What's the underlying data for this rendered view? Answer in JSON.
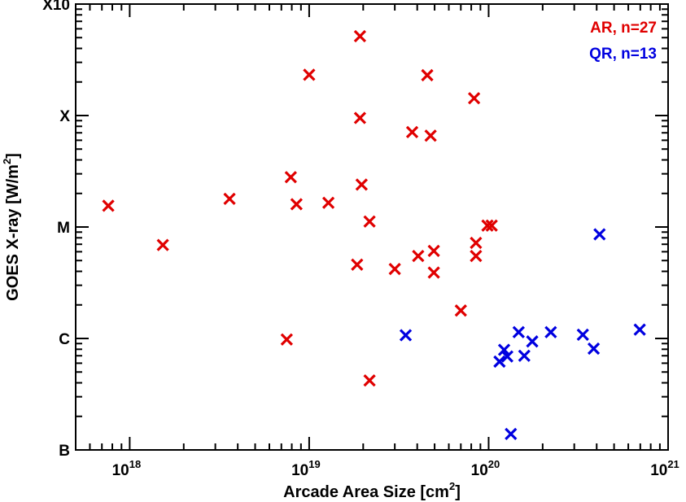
{
  "chart_data": {
    "type": "scatter",
    "xlabel": "Arcade Area Size [cm",
    "xlabel_sup": "2",
    "xlabel_end": "]",
    "ylabel": "GOES X-ray [W/m",
    "ylabel_sup": "2",
    "ylabel_end": "]",
    "x_scale": "log",
    "y_scale": "log",
    "xlim": [
      5e+17,
      1e+21
    ],
    "ylim": [
      1e-07,
      0.001
    ],
    "x_ticks": [
      {
        "value": 1e+18,
        "base": "10",
        "exp": "18"
      },
      {
        "value": 1e+19,
        "base": "10",
        "exp": "19"
      },
      {
        "value": 1e+20,
        "base": "10",
        "exp": "20"
      },
      {
        "value": 1e+21,
        "base": "10",
        "exp": "21"
      }
    ],
    "y_ticks": [
      {
        "value": 1e-07,
        "label": "B"
      },
      {
        "value": 1e-06,
        "label": "C"
      },
      {
        "value": 1e-05,
        "label": "M"
      },
      {
        "value": 0.0001,
        "label": "X"
      },
      {
        "value": 0.001,
        "label": "X10"
      }
    ],
    "grid": false,
    "legend_position": "top-right",
    "series": [
      {
        "name": "AR, n=27",
        "color": "#e00000",
        "marker": "x",
        "points": [
          [
            7.6e+17,
            1.55e-05
          ],
          [
            1.53e+18,
            6.9e-06
          ],
          [
            3.6e+18,
            1.79e-05
          ],
          [
            7.5e+18,
            9.8e-07
          ],
          [
            7.9e+18,
            2.8e-05
          ],
          [
            8.5e+18,
            1.6e-05
          ],
          [
            1e+19,
            0.000232
          ],
          [
            1.28e+19,
            1.65e-05
          ],
          [
            1.85e+19,
            4.6e-06
          ],
          [
            1.92e+19,
            0.000515
          ],
          [
            1.92e+19,
            9.5e-05
          ],
          [
            1.96e+19,
            2.4e-05
          ],
          [
            2.17e+19,
            1.12e-05
          ],
          [
            2.17e+19,
            4.2e-07
          ],
          [
            3e+19,
            4.2e-06
          ],
          [
            3.75e+19,
            7.1e-05
          ],
          [
            4.05e+19,
            5.5e-06
          ],
          [
            4.55e+19,
            0.00023
          ],
          [
            4.75e+19,
            6.6e-05
          ],
          [
            4.95e+19,
            6.1e-06
          ],
          [
            4.95e+19,
            3.9e-06
          ],
          [
            7e+19,
            1.78e-06
          ],
          [
            8.3e+19,
            0.000143
          ],
          [
            8.5e+19,
            7.2e-06
          ],
          [
            8.5e+19,
            5.5e-06
          ],
          [
            9.85e+19,
            1.03e-05
          ],
          [
            1.04e+20,
            1.03e-05
          ]
        ]
      },
      {
        "name": "QR, n=13",
        "color": "#0000e0",
        "marker": "x",
        "points": [
          [
            3.45e+19,
            1.07e-06
          ],
          [
            1.15e+20,
            6.2e-07
          ],
          [
            1.22e+20,
            7.9e-07
          ],
          [
            1.27e+20,
            6.9e-07
          ],
          [
            1.33e+20,
            1.39e-07
          ],
          [
            1.47e+20,
            1.14e-06
          ],
          [
            1.58e+20,
            7e-07
          ],
          [
            1.75e+20,
            9.4e-07
          ],
          [
            2.22e+20,
            1.14e-06
          ],
          [
            3.35e+20,
            1.08e-06
          ],
          [
            3.85e+20,
            8.1e-07
          ],
          [
            4.15e+20,
            8.6e-06
          ],
          [
            6.95e+20,
            1.2e-06
          ]
        ]
      }
    ]
  }
}
